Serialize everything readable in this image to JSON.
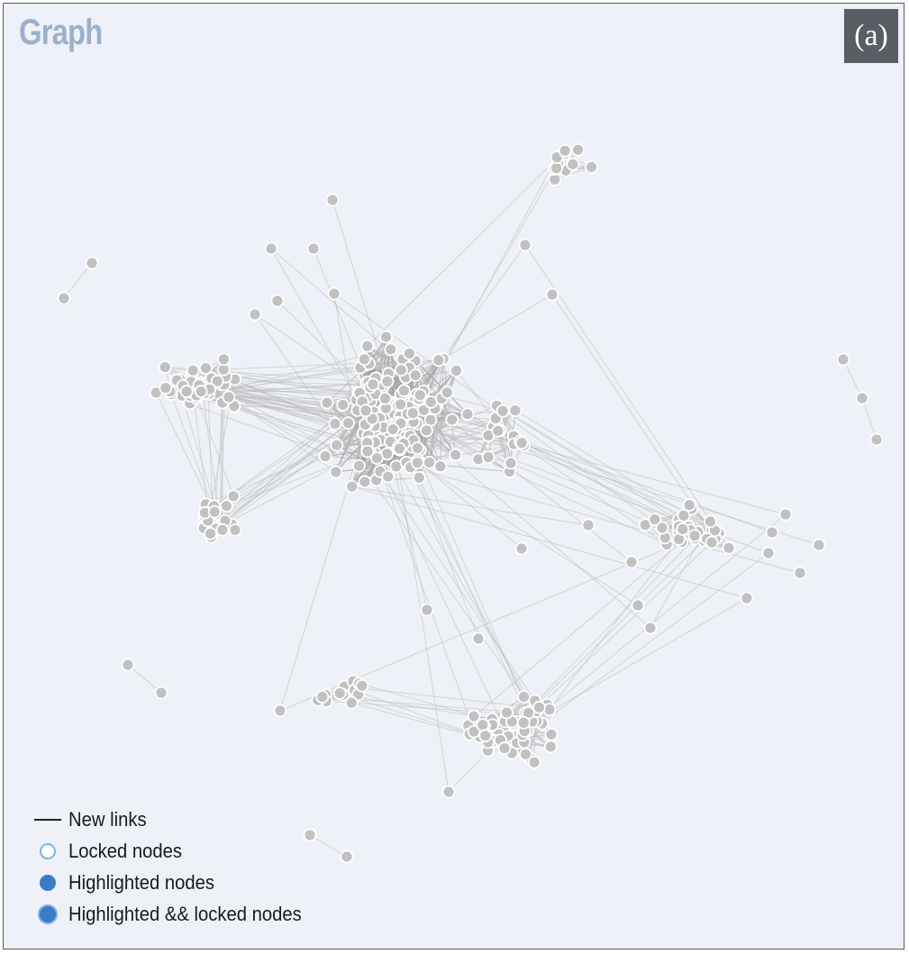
{
  "title": "Graph",
  "panel_label": "(a)",
  "legend": [
    {
      "label": "New links",
      "icon": "line-swatch-icon"
    },
    {
      "label": "Locked nodes",
      "icon": "locked-node-icon"
    },
    {
      "label": "Highlighted nodes",
      "icon": "highlighted-node-icon"
    },
    {
      "label": "Highlighted && locked nodes",
      "icon": "highlighted-locked-node-icon"
    }
  ],
  "colors": {
    "background": "#eef1f7",
    "node_fill": "#c1c1c1",
    "node_stroke": "#ffffff",
    "edge": "#bcbcbc",
    "new_link": "#222222",
    "locked_stroke": "#7cb3e4",
    "highlight_fill": "#3b7cc7",
    "title": "#9bb0cc",
    "panel_label_bg": "#595e64"
  }
}
